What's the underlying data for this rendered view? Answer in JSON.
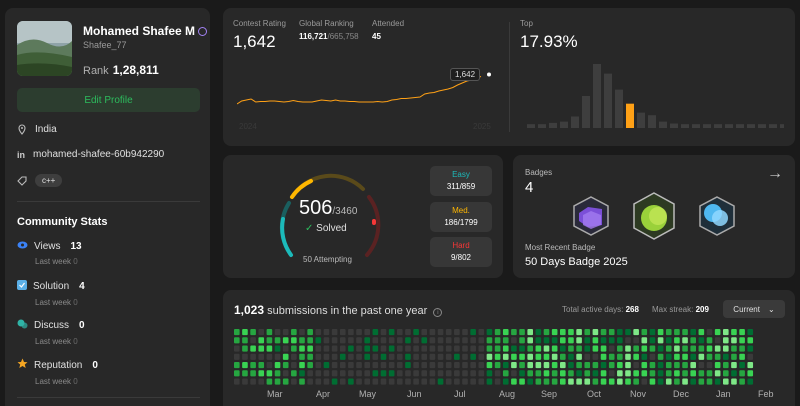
{
  "profile": {
    "name": "Mohamed Shafee M",
    "username": "Shafee_77",
    "rank_label": "Rank",
    "rank_value": "1,28,811",
    "edit_label": "Edit Profile",
    "location": "India",
    "linkedin": "mohamed-shafee-60b942290",
    "skill_tag": "c++"
  },
  "community": {
    "title": "Community Stats",
    "stats": [
      {
        "label": "Views",
        "value": "13",
        "sub": "Last week",
        "sub_value": "0",
        "icon": "eye-icon",
        "color": "#3b82f6"
      },
      {
        "label": "Solution",
        "value": "4",
        "sub": "Last week",
        "sub_value": "0",
        "icon": "checkbox-icon",
        "color": "#5bb0e8"
      },
      {
        "label": "Discuss",
        "value": "0",
        "sub": "Last week",
        "sub_value": "0",
        "icon": "discuss-icon",
        "color": "#2fb3a6"
      },
      {
        "label": "Reputation",
        "value": "0",
        "sub": "Last week",
        "sub_value": "0",
        "icon": "star-icon",
        "color": "#f5a623"
      }
    ]
  },
  "contest": {
    "rating_label": "Contest Rating",
    "rating_value": "1,642",
    "global_label": "Global Ranking",
    "global_rank": "116,721",
    "global_total": "/665,758",
    "attended_label": "Attended",
    "attended_value": "45",
    "tooltip": "1,642",
    "axis_start": "2024",
    "axis_end": "2025",
    "top_label": "Top",
    "top_value": "17.93%",
    "histogram": [
      0.06,
      0.06,
      0.08,
      0.1,
      0.18,
      0.5,
      1.0,
      0.85,
      0.6,
      0.38,
      0.24,
      0.2,
      0.1,
      0.07,
      0.06,
      0.06,
      0.06,
      0.06,
      0.06,
      0.06,
      0.06,
      0.06,
      0.06,
      0.06
    ],
    "highlight_index": 9,
    "rating_trend": [
      0.22,
      0.28,
      0.3,
      0.32,
      0.26,
      0.27,
      0.27,
      0.28,
      0.28,
      0.27,
      0.26,
      0.27,
      0.29,
      0.27,
      0.26,
      0.26,
      0.26,
      0.28,
      0.3,
      0.29,
      0.28,
      0.3,
      0.28,
      0.28,
      0.27,
      0.27,
      0.26,
      0.26,
      0.26,
      0.26,
      0.27,
      0.26,
      0.27,
      0.3,
      0.31,
      0.33,
      0.33,
      0.34,
      0.35,
      0.36,
      0.42,
      0.44,
      0.45,
      0.48,
      0.5,
      0.52,
      0.55,
      0.6,
      0.64,
      0.68,
      0.7,
      0.74,
      0.77
    ]
  },
  "solved": {
    "count": "506",
    "total": "/3460",
    "solved_label": "Solved",
    "attempting": "50 Attempting",
    "easy_label": "Easy",
    "easy_value": "311/859",
    "med_label": "Med.",
    "med_value": "186/1799",
    "hard_label": "Hard",
    "hard_value": "9/802",
    "colors": {
      "easy": "#1cbaba",
      "med": "#ffb700",
      "hard": "#f63737"
    }
  },
  "badges": {
    "label": "Badges",
    "count": "4",
    "recent_label": "Most Recent Badge",
    "recent_name": "50 Days Badge 2025"
  },
  "submissions": {
    "count": "1,023",
    "text": " submissions in the past one year",
    "active_label": "Total active days:",
    "active_value": "268",
    "streak_label": "Max streak:",
    "streak_value": "209",
    "current_label": "Current",
    "months": [
      "Mar",
      "Apr",
      "May",
      "Jun",
      "Jul",
      "Aug",
      "Sep",
      "Oct",
      "Nov",
      "Dec",
      "Jan",
      "Feb"
    ]
  }
}
